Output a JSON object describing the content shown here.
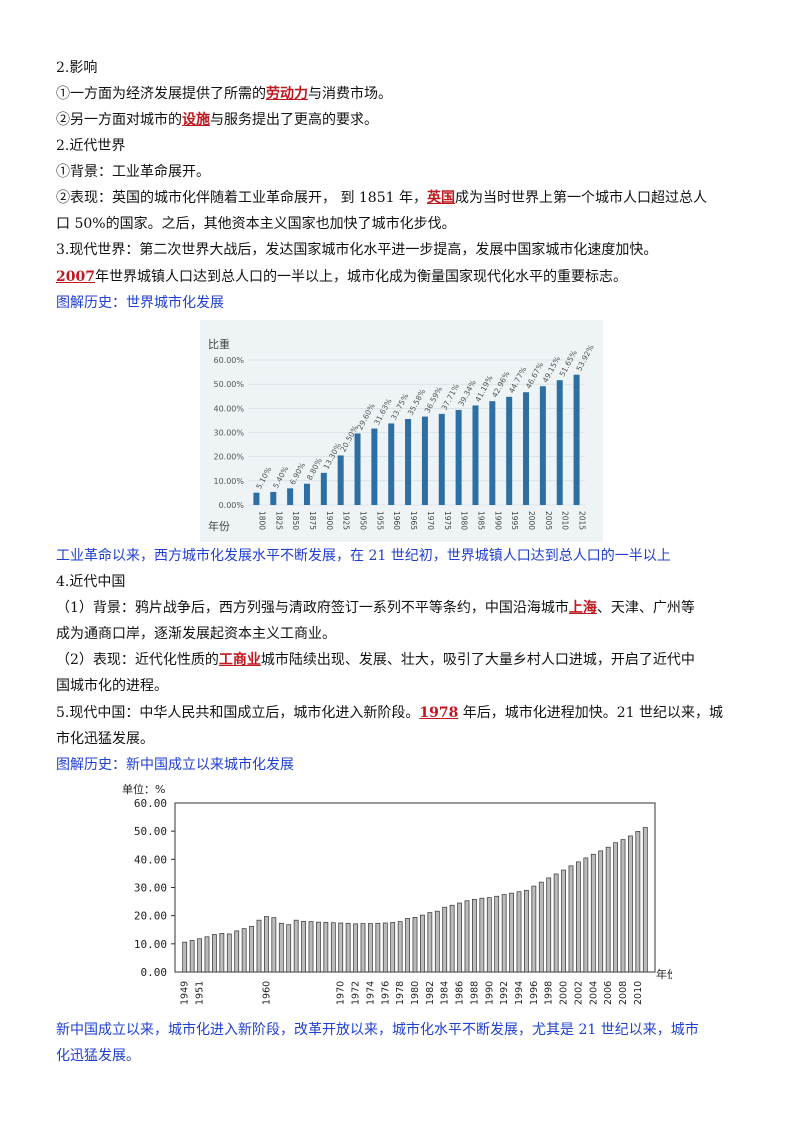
{
  "lines": [
    {
      "t1": "2.影响"
    },
    {
      "t1": "①一方面为经济发展提供了所需的",
      "em": "劳动力",
      "t2": "与消费市场。"
    },
    {
      "t1": "②另一方面对城市的",
      "em": "设施",
      "t2": "与服务提出了更高的要求。"
    },
    {
      "t1": "2.近代世界"
    },
    {
      "t1": "①背景：工业革命展开。"
    },
    {
      "t1": "②表现：英国的城市化伴随着工业革命展开，  到 1851 年，",
      "em": "英国",
      "t2": "成为当时世界上第一个城市人口超过总人"
    },
    {
      "t1": "口 50%的国家。之后，其他资本主义国家也加快了城市化步伐。"
    },
    {
      "t1": "3.现代世界：第二次世界大战后，发达国家城市化水平进一步提高，发展中国家城市化速度加快。"
    },
    {
      "em": "2007",
      "t2": "年世界城镇人口达到总人口的一半以上，城市化成为衡量国家现代化水平的重要标志。"
    },
    {
      "t1": "图解历史：世界城市化发展"
    },
    {
      "t1": "工业革命以来，西方城市化发展水平不断发展，在 21 世纪初，世界城镇人口达到总人口的一半以上"
    },
    {
      "t1": "4.近代中国"
    },
    {
      "t1": "（1）背景：鸦片战争后，西方列强与清政府签订一系列不平等条约，中国沿海城市",
      "em": "上海",
      "t2": "、天津、广州等"
    },
    {
      "t1": "成为通商口岸，逐渐发展起资本主义工商业。"
    },
    {
      "t1": "（2）表现：近代化性质的",
      "em": "工商业",
      "t2": "城市陆续出现、发展、壮大，吸引了大量乡村人口进城，开启了近代中"
    },
    {
      "t1": "国城市化的进程。"
    },
    {
      "t1": "5.现代中国：中华人民共和国成立后，城市化进入新阶段。",
      "em": "1978",
      "t2": " 年后，城市化进程加快。21 世纪以来，城"
    },
    {
      "t1": "市化迅猛发展。"
    },
    {
      "t1": "图解历史：新中国成立以来城市化发展"
    },
    {
      "t1": "新中国成立以来，城市化进入新阶段，改革开放以来，城市化水平不断发展，尤其是 21 世纪以来，城市"
    },
    {
      "t1": "化迅猛发展。"
    }
  ],
  "colors": {
    "accent_red": "#c0181f",
    "caption_blue": "#1f3fd0",
    "bar_blue": "#2d6fa3",
    "bar_gray": "#bbbbbb"
  },
  "chart_data": [
    {
      "type": "bar",
      "ylabel": "比重",
      "xlabel": "年份",
      "ylim": [
        0,
        60
      ],
      "yticks": [
        "0.00%",
        "10.00%",
        "20.00%",
        "30.00%",
        "40.00%",
        "50.00%",
        "60.00%"
      ],
      "categories": [
        "1800",
        "1825",
        "1850",
        "1875",
        "1900",
        "1925",
        "1950",
        "1955",
        "1960",
        "1965",
        "1970",
        "1975",
        "1980",
        "1985",
        "1990",
        "1995",
        "2000",
        "2005",
        "2010",
        "2015"
      ],
      "values": [
        5.1,
        5.4,
        6.9,
        8.8,
        13.3,
        20.5,
        29.6,
        31.63,
        33.75,
        35.58,
        36.59,
        37.71,
        39.34,
        41.19,
        42.96,
        44.77,
        46.67,
        49.15,
        51.65,
        53.92
      ],
      "labels": [
        "5.10%",
        "5.40%",
        "6.90%",
        "8.80%",
        "13.30%",
        "20.50%",
        "29.60%",
        "31.63%",
        "33.75%",
        "35.58%",
        "36.59%",
        "37.71%",
        "39.34%",
        "41.19%",
        "42.96%",
        "44.77%",
        "46.67%",
        "49.15%",
        "51.65%",
        "53.92%"
      ]
    },
    {
      "type": "bar",
      "ylabel": "单位：%",
      "xlabel": "年份",
      "ylim": [
        0,
        60
      ],
      "yticks": [
        "0.00",
        "10.00",
        "20.00",
        "30.00",
        "40.00",
        "50.00",
        "60.00"
      ],
      "x": [
        1949,
        1950,
        1951,
        1952,
        1953,
        1954,
        1955,
        1956,
        1957,
        1958,
        1959,
        1960,
        1961,
        1962,
        1963,
        1964,
        1965,
        1966,
        1967,
        1968,
        1969,
        1970,
        1971,
        1972,
        1973,
        1974,
        1975,
        1976,
        1977,
        1978,
        1979,
        1980,
        1981,
        1982,
        1983,
        1984,
        1985,
        1986,
        1987,
        1988,
        1989,
        1990,
        1991,
        1992,
        1993,
        1994,
        1995,
        1996,
        1997,
        1998,
        1999,
        2000,
        2001,
        2002,
        2003,
        2004,
        2005,
        2006,
        2007,
        2008,
        2009,
        2010,
        2011
      ],
      "xtick_labels": [
        "1949",
        "1951",
        "1960",
        "1970",
        "1972",
        "1974",
        "1976",
        "1978",
        "1980",
        "1982",
        "1984",
        "1986",
        "1988",
        "1990",
        "1992",
        "1994",
        "1996",
        "1998",
        "2000",
        "2002",
        "2004",
        "2006",
        "2008",
        "2010"
      ],
      "values": [
        10.6,
        11.2,
        11.8,
        12.5,
        13.3,
        13.7,
        13.5,
        14.6,
        15.4,
        16.2,
        18.4,
        19.7,
        19.3,
        17.3,
        16.8,
        18.4,
        18.0,
        17.9,
        17.7,
        17.6,
        17.5,
        17.4,
        17.3,
        17.1,
        17.2,
        17.2,
        17.3,
        17.4,
        17.6,
        17.9,
        19.0,
        19.4,
        20.2,
        21.1,
        21.6,
        23.0,
        23.7,
        24.5,
        25.3,
        25.8,
        26.2,
        26.4,
        26.9,
        27.5,
        28.0,
        28.5,
        29.0,
        30.5,
        31.9,
        33.4,
        34.8,
        36.2,
        37.7,
        39.1,
        40.5,
        41.8,
        43.0,
        44.3,
        45.9,
        47.0,
        48.3,
        49.9,
        51.3
      ]
    }
  ]
}
